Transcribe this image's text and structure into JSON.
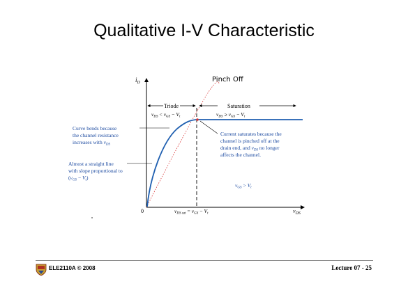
{
  "slide": {
    "title": "Qualitative I-V Characteristic"
  },
  "diagram": {
    "y_axis_label": "i",
    "y_axis_sub": "D",
    "x_axis_label": "v",
    "x_axis_sub": "DS",
    "origin": "0",
    "pinch_off": "Pinch Off",
    "triode": {
      "label": "Triode",
      "cond_v": "v",
      "cond_sub1": "DS",
      "cond_op": "<",
      "cond_v2": "v",
      "cond_sub2": "GS",
      "cond_minus": "−",
      "cond_vt": "V",
      "cond_sub3": "t"
    },
    "saturation": {
      "label": "Saturation",
      "cond_v": "v",
      "cond_sub1": "DS",
      "cond_op": "≥",
      "cond_v2": "v",
      "cond_sub2": "GS",
      "cond_minus": "−",
      "cond_vt": "V",
      "cond_sub3": "t"
    },
    "note_curve": {
      "line1": "Curve bends because",
      "line2": "the channel resistance",
      "line3_text": "increases with ",
      "line3_v": "v",
      "line3_sub": "DS"
    },
    "note_straight": {
      "line1": "Almost a straight line",
      "line2": "with slope proportional to",
      "line3_open": "(",
      "line3_v": "v",
      "line3_sub": "GS",
      "line3_minus": " − ",
      "line3_vt": "V",
      "line3_sub2": "t",
      "line3_close": ")"
    },
    "note_saturates": {
      "line1": "Current saturates because the",
      "line2": "channel is pinched off at the",
      "line3_text1": "drain end, and ",
      "line3_v": "v",
      "line3_sub": "DS",
      "line3_text2": " no longer",
      "line4": "affects the channel."
    },
    "vgs_cond": {
      "v": "v",
      "sub": "GS",
      "op": ">",
      "vt": "V",
      "sub2": "t"
    },
    "vdssat": {
      "v": "v",
      "sub": "DS sat",
      "eq": "=",
      "v2": "v",
      "sub2": "GS",
      "minus": "−",
      "vt": "V",
      "sub3": "t"
    }
  },
  "footer": {
    "left": "ELE2110A © 2008",
    "right": "Lecture 07 - 25"
  },
  "colors": {
    "curve": "#1f5fb0",
    "text": "#1c4aa0",
    "pinch": "#d83030"
  }
}
